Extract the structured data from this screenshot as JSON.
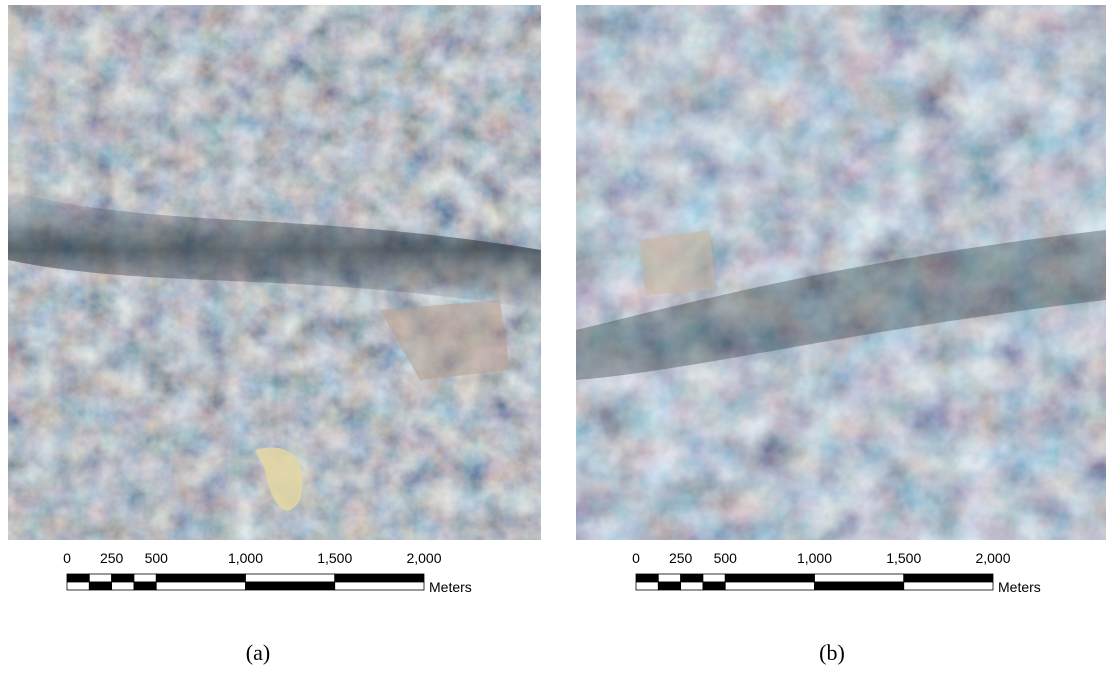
{
  "panels": [
    {
      "label": "(a)",
      "scale_bar": {
        "ticks": [
          0,
          250,
          500,
          {
            "value": 1000,
            "label": "1,000"
          },
          {
            "value": 1500,
            "label": "1,500"
          },
          {
            "value": 2000,
            "label": "2,000"
          }
        ],
        "unit": "Meters"
      }
    },
    {
      "label": "(b)",
      "scale_bar": {
        "ticks": [
          0,
          250,
          500,
          {
            "value": 1000,
            "label": "1,000"
          },
          {
            "value": 1500,
            "label": "1,500"
          },
          {
            "value": 2000,
            "label": "2,000"
          }
        ],
        "unit": "Meters"
      }
    }
  ]
}
